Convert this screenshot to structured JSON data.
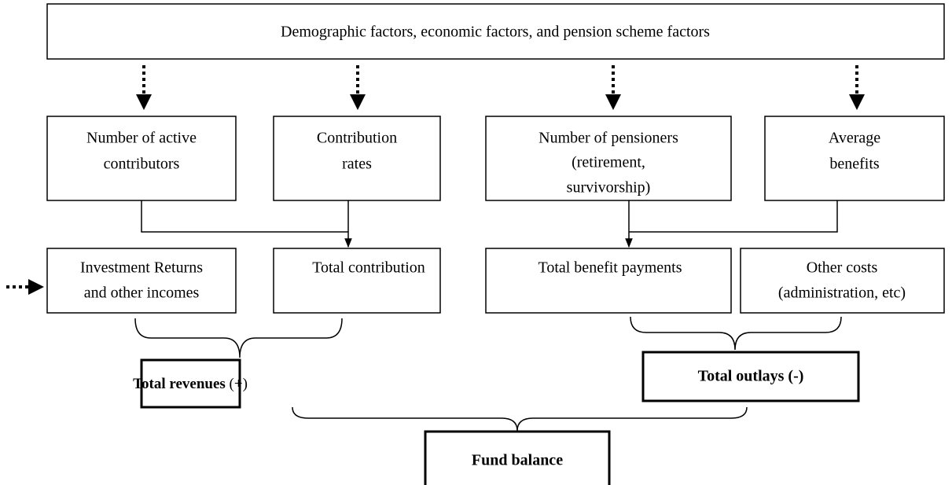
{
  "header": {
    "text": "Demographic factors, economic factors, and pension scheme factors"
  },
  "drivers": [
    {
      "lines": [
        "Number of active",
        "contributors"
      ]
    },
    {
      "lines": [
        "Contribution",
        "rates"
      ]
    },
    {
      "lines": [
        "Number of pensioners",
        "(retirement,",
        "survivorship)"
      ]
    },
    {
      "lines": [
        "Average",
        "benefits"
      ]
    }
  ],
  "flows": [
    {
      "lines": [
        "Investment Returns",
        "and other incomes"
      ]
    },
    {
      "lines": [
        "Total contribution"
      ]
    },
    {
      "lines": [
        "Total benefit payments"
      ]
    },
    {
      "lines": [
        "Other costs",
        "(administration, etc)"
      ]
    }
  ],
  "totals": {
    "revenues": {
      "label": "Total  revenues",
      "sign": "(+)"
    },
    "outlays": "Total  outlays (-)"
  },
  "result": "Fund balance"
}
